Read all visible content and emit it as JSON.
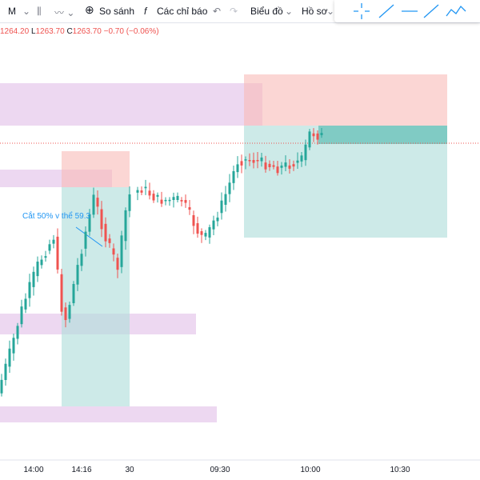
{
  "toolbar": {
    "interval": "M",
    "compare": "So sánh",
    "indicators": "Các chỉ báo",
    "chart": "Biểu đồ",
    "profile": "Hồ sơ"
  },
  "ohlc": {
    "high": "1264.20",
    "low_label": "L",
    "low": "1263.70",
    "close_label": "C",
    "close": "1263.70",
    "change": "−0.70 (−0.06%)"
  },
  "annotation": "Cắt 50% v thể 59.3",
  "x_axis": {
    "ticks": [
      "14:00",
      "14:16",
      "30",
      "09:30",
      "10:00",
      "10:30"
    ]
  }
}
